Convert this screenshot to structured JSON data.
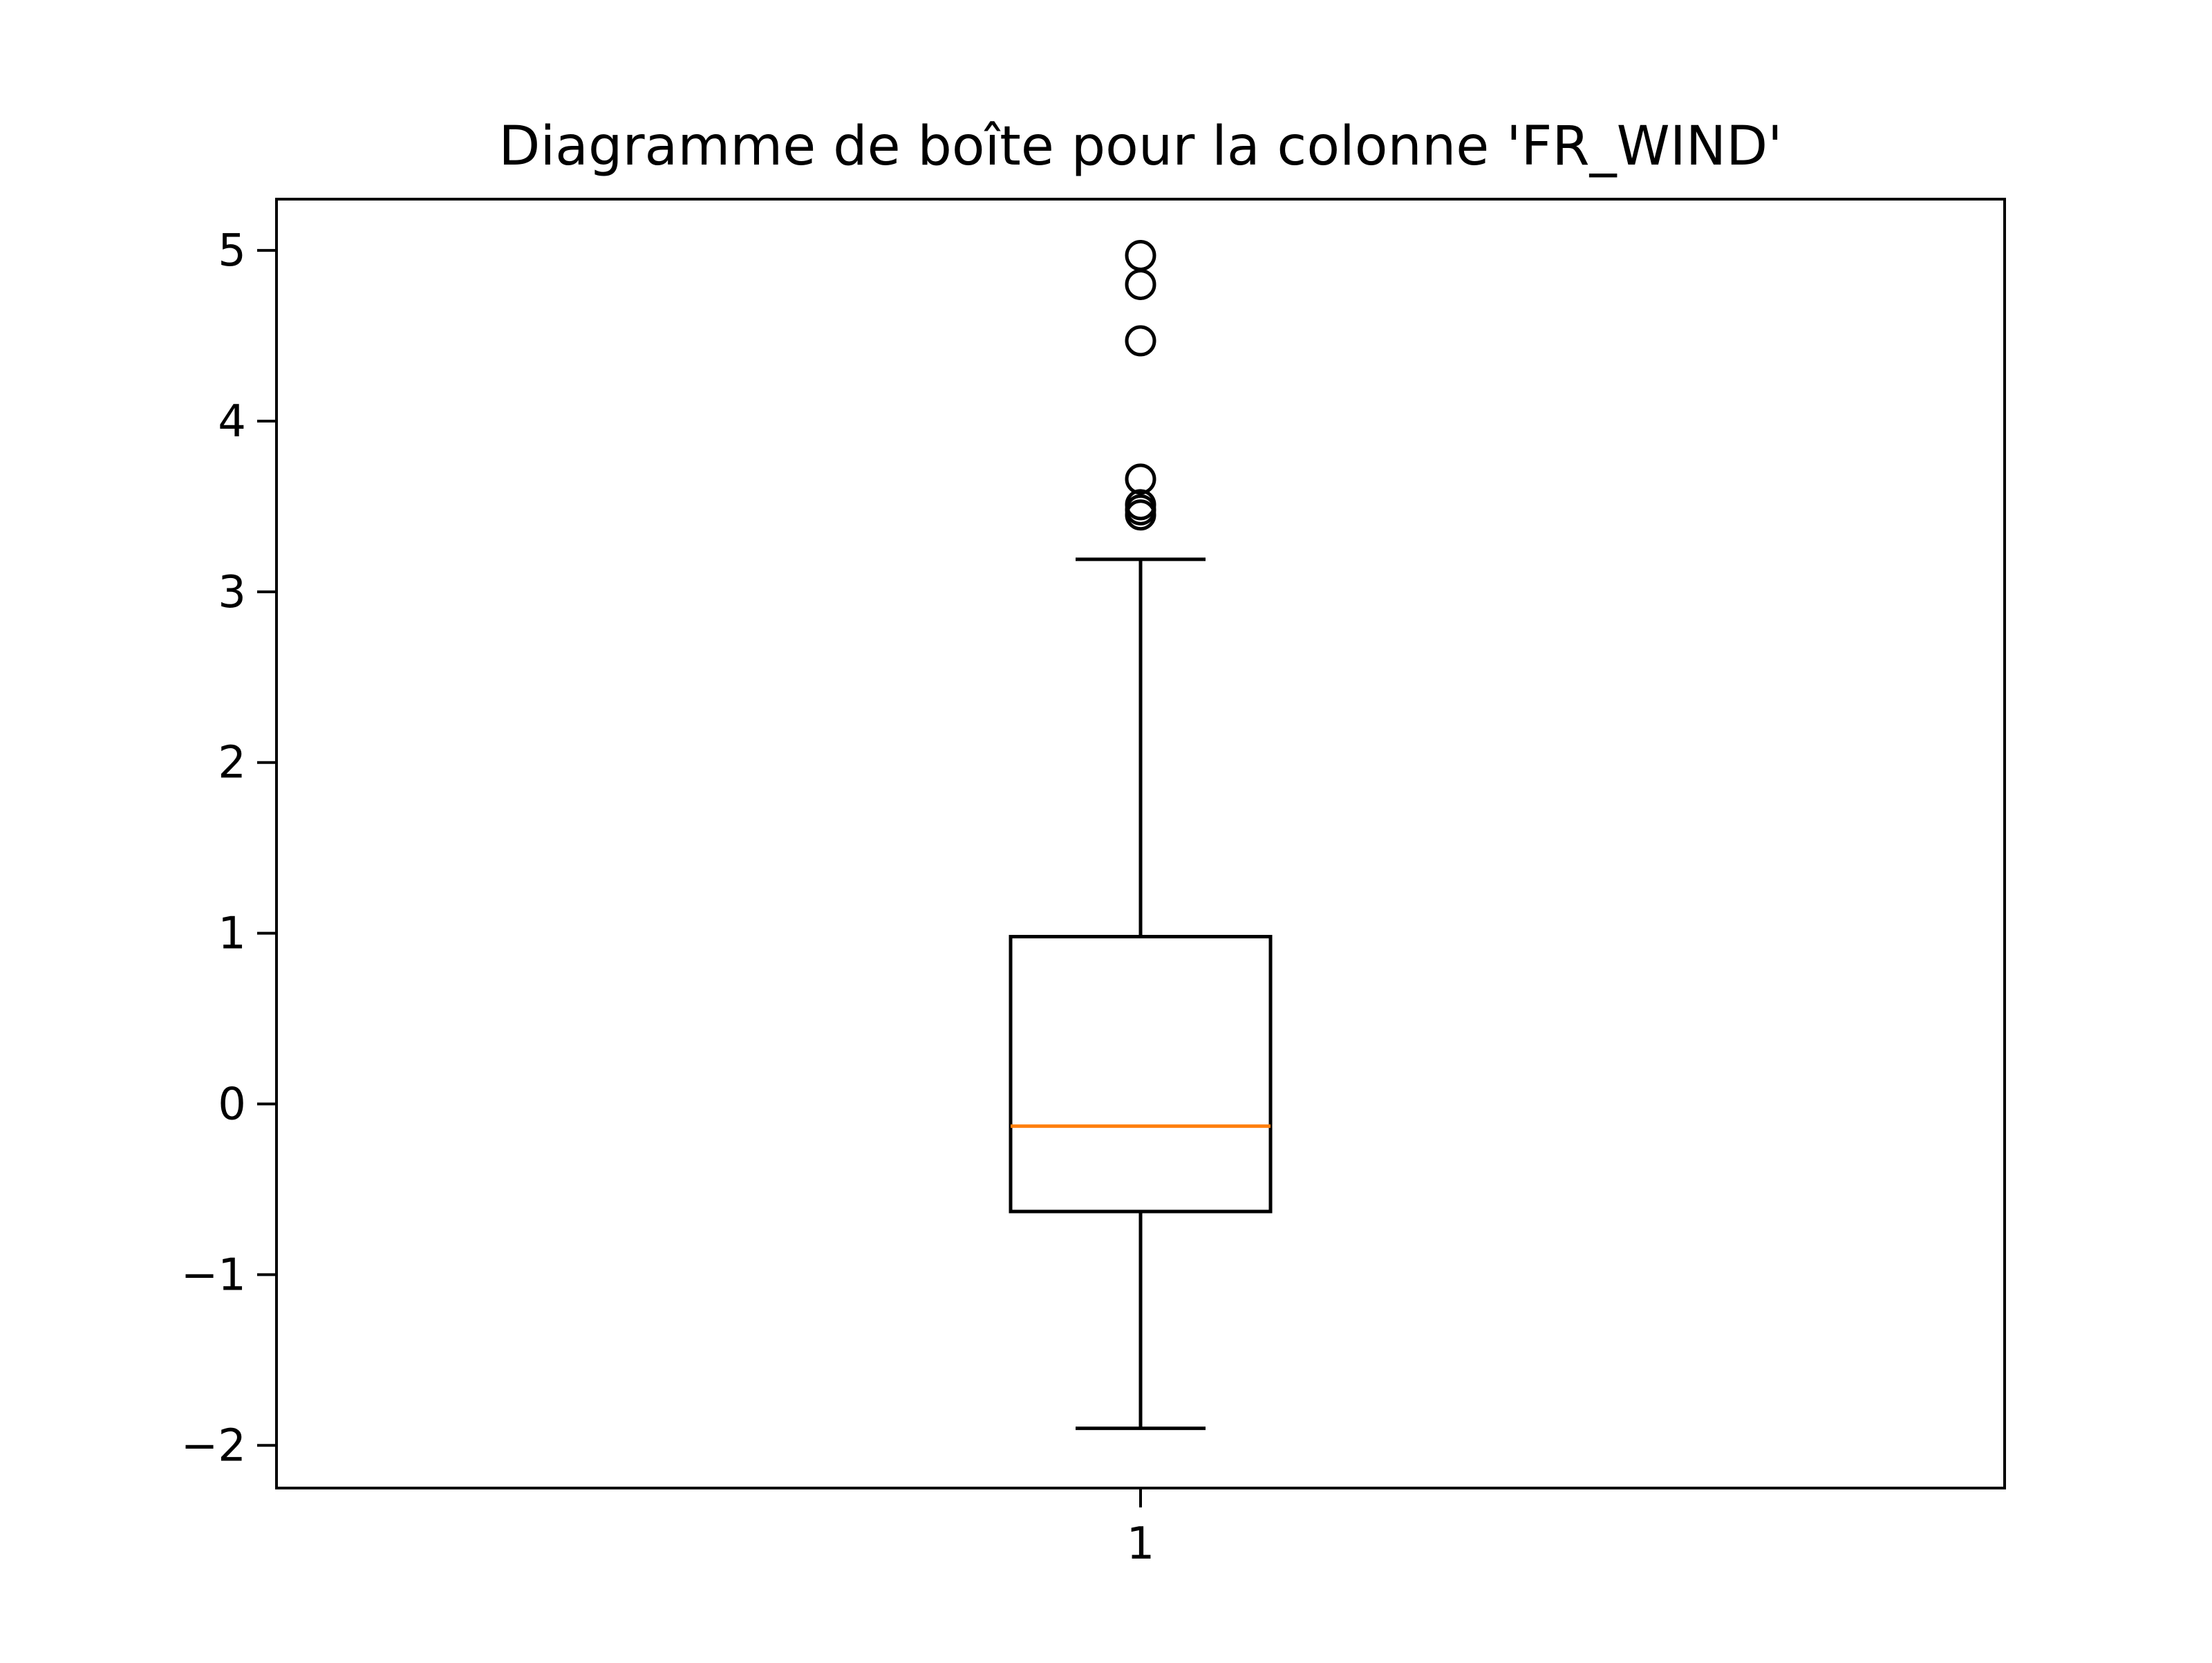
{
  "chart_data": {
    "type": "box",
    "title": "Diagramme de boîte pour la colonne 'FR_WIND'",
    "xlabel": "",
    "ylabel": "",
    "categories": [
      "1"
    ],
    "ylim": [
      -2.25,
      5.3
    ],
    "yticks": [
      -2,
      -1,
      0,
      1,
      2,
      3,
      4,
      5
    ],
    "ytick_labels": [
      "−2",
      "−1",
      "0",
      "1",
      "2",
      "3",
      "4",
      "5"
    ],
    "grid": false,
    "boxes": [
      {
        "category": "1",
        "whisker_low": -1.9,
        "q1": -0.63,
        "median": -0.13,
        "q3": 0.98,
        "whisker_high": 3.19,
        "outliers": [
          3.45,
          3.48,
          3.51,
          3.66,
          4.47,
          4.8,
          4.97
        ]
      }
    ],
    "colors": {
      "box": "#000000",
      "median": "#ff7f0e",
      "axes": "#000000"
    }
  }
}
